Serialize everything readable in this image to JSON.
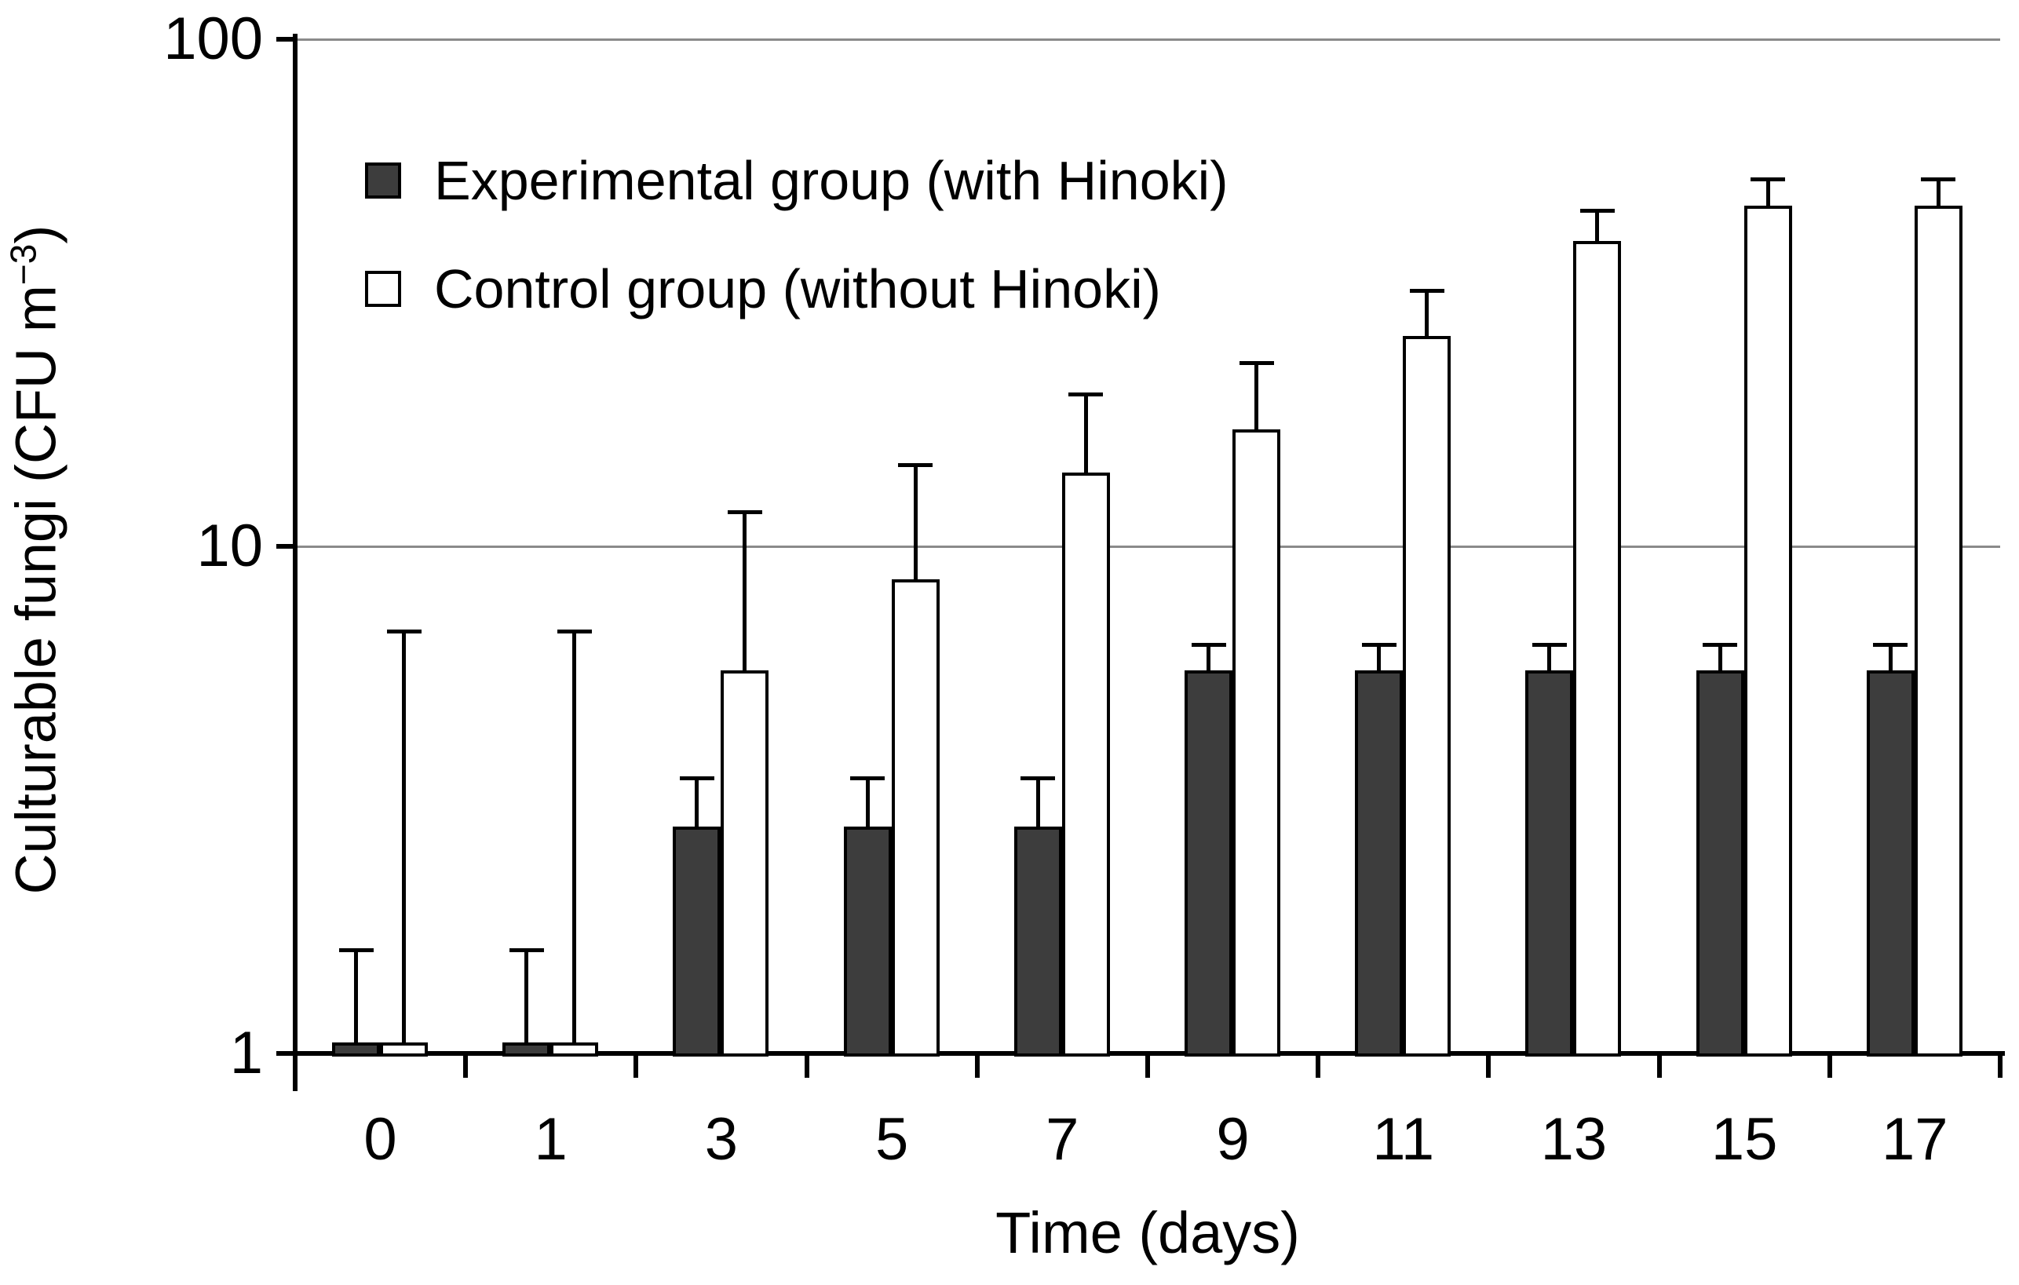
{
  "chart_data": {
    "type": "bar",
    "y_scale": "log10",
    "xlabel": "Time (days)",
    "ylabel": "Culturable fungi (CFU m−3)",
    "ylabel_parts": {
      "pre": "Culturable fungi (CFU m",
      "sup": "−3",
      "post": ")"
    },
    "categories": [
      "0",
      "1",
      "3",
      "5",
      "7",
      "9",
      "11",
      "13",
      "15",
      "17"
    ],
    "ylim": [
      1,
      100
    ],
    "yticks": [
      "1",
      "10",
      "100"
    ],
    "ytick_values": [
      1,
      10,
      100
    ],
    "gridlines_at": [
      10,
      100
    ],
    "legend_position": "top-left-inside",
    "grid": "horizontal only",
    "error_bars": "upper one-sided with caps",
    "series": [
      {
        "name": "Experimental group (with Hinoki)",
        "swatch": "filled-dark-square",
        "fill": "#3d3d3d",
        "values": [
          1.05,
          1.05,
          2.8,
          2.8,
          2.8,
          5.7,
          5.7,
          5.7,
          5.7,
          5.7
        ],
        "error_upper": [
          1.6,
          1.6,
          3.5,
          3.5,
          3.5,
          6.4,
          6.4,
          6.4,
          6.4,
          6.4
        ]
      },
      {
        "name": "Control group (without Hinoki)",
        "swatch": "open-white-square",
        "fill": "#ffffff",
        "values": [
          1.05,
          1.05,
          5.7,
          8.6,
          14,
          17,
          26,
          40,
          47,
          47
        ],
        "error_upper": [
          6.8,
          6.8,
          11.7,
          14.5,
          20,
          23,
          32,
          46,
          53,
          53
        ]
      }
    ],
    "colors": {
      "axis": "#000000",
      "gridline": "#8a8a8a",
      "bar_outline": "#000000",
      "experimental_fill": "#3d3d3d",
      "control_fill": "#ffffff"
    }
  }
}
